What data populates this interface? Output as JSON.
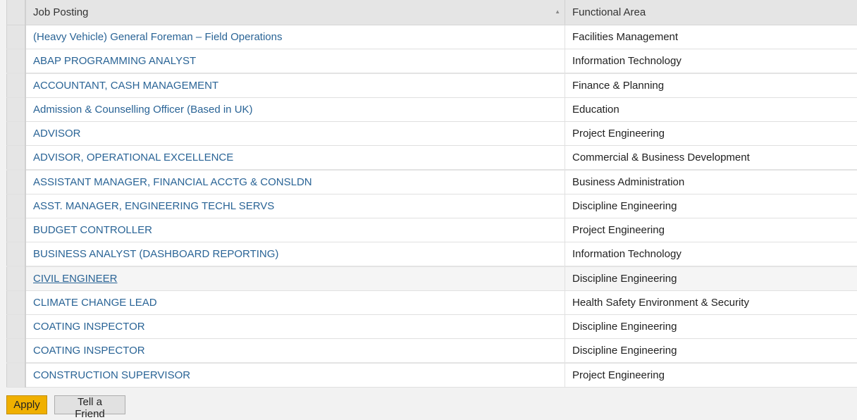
{
  "table": {
    "columns": [
      "Job Posting",
      "Functional Area"
    ],
    "sort_icon": "sort-ascending-icon",
    "rows": [
      {
        "job": "(Heavy Vehicle) General Foreman – Field Operations",
        "area": "Facilities Management"
      },
      {
        "job": "ABAP PROGRAMMING ANALYST",
        "area": "Information Technology"
      },
      {
        "job": "ACCOUNTANT, CASH MANAGEMENT",
        "area": "Finance & Planning"
      },
      {
        "job": "Admission & Counselling Officer (Based in UK)",
        "area": "Education"
      },
      {
        "job": "ADVISOR",
        "area": "Project Engineering"
      },
      {
        "job": "ADVISOR, OPERATIONAL EXCELLENCE",
        "area": "Commercial & Business Development"
      },
      {
        "job": "ASSISTANT MANAGER, FINANCIAL ACCTG & CONSLDN",
        "area": "Business Administration"
      },
      {
        "job": "ASST. MANAGER, ENGINEERING TECHL SERVS",
        "area": "Discipline Engineering"
      },
      {
        "job": "BUDGET CONTROLLER",
        "area": "Project Engineering"
      },
      {
        "job": "BUSINESS ANALYST (DASHBOARD REPORTING)",
        "area": "Information Technology"
      },
      {
        "job": "CIVIL ENGINEER",
        "area": "Discipline Engineering"
      },
      {
        "job": "CLIMATE CHANGE LEAD",
        "area": "Health Safety Environment & Security"
      },
      {
        "job": "COATING INSPECTOR",
        "area": "Discipline Engineering"
      },
      {
        "job": "COATING INSPECTOR",
        "area": "Discipline Engineering"
      },
      {
        "job": "CONSTRUCTION SUPERVISOR",
        "area": "Project Engineering"
      }
    ]
  },
  "buttons": {
    "apply": "Apply",
    "tell_friend": "Tell a Friend"
  },
  "colors": {
    "link": "#2a6496",
    "apply_bg": "#f0b000"
  }
}
